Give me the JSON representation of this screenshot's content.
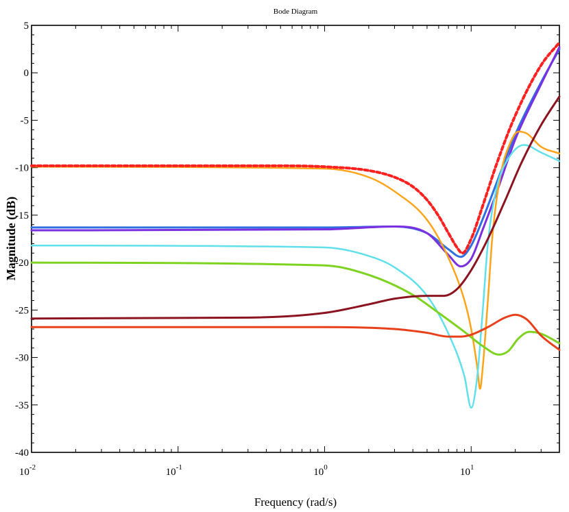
{
  "chart_data": {
    "type": "line",
    "title": "Bode Diagram",
    "xlabel": "Frequency (rad/s)",
    "ylabel": "Magnitude (dB)",
    "xscale": "log",
    "xlim": [
      0.01,
      40
    ],
    "ylim": [
      -40,
      5
    ],
    "grid": false,
    "x_ticks": [
      {
        "value": 0.01,
        "base": "10",
        "exp": "-2"
      },
      {
        "value": 0.1,
        "base": "10",
        "exp": "-1"
      },
      {
        "value": 1,
        "base": "10",
        "exp": "0"
      },
      {
        "value": 10,
        "base": "10",
        "exp": "1"
      }
    ],
    "y_ticks": [
      "5",
      "0",
      "-5",
      "-10",
      "-15",
      "-20",
      "-25",
      "-30",
      "-35",
      "-40"
    ],
    "series": [
      {
        "color": "#2f6fe0",
        "width": 3,
        "dash": "",
        "points": [
          [
            0.01,
            -16.3
          ],
          [
            1,
            -16.3
          ],
          [
            3,
            -16.2
          ],
          [
            5,
            -16.9
          ],
          [
            7,
            -18.6
          ],
          [
            8.5,
            -19.4
          ],
          [
            10,
            -18.2
          ],
          [
            12,
            -15.4
          ],
          [
            15,
            -11.5
          ],
          [
            20,
            -6.5
          ],
          [
            30,
            -1
          ],
          [
            40,
            2.5
          ]
        ]
      },
      {
        "color": "#7a2fe0",
        "width": 3,
        "dash": "",
        "points": [
          [
            0.01,
            -16.6
          ],
          [
            1,
            -16.5
          ],
          [
            3,
            -16.2
          ],
          [
            5,
            -16.9
          ],
          [
            7,
            -19.2
          ],
          [
            8.5,
            -20.4
          ],
          [
            10,
            -19.6
          ],
          [
            12,
            -16.5
          ],
          [
            15,
            -12.5
          ],
          [
            20,
            -7
          ],
          [
            30,
            -1.2
          ],
          [
            40,
            2.7
          ]
        ]
      },
      {
        "color": "#ffa41a",
        "width": 2.5,
        "dash": "",
        "points": [
          [
            0.01,
            -9.9
          ],
          [
            1,
            -10.1
          ],
          [
            2,
            -11
          ],
          [
            3,
            -12.5
          ],
          [
            5,
            -15.5
          ],
          [
            7,
            -19.5
          ],
          [
            9,
            -24
          ],
          [
            10,
            -27
          ],
          [
            11,
            -31
          ],
          [
            11.5,
            -33.3
          ],
          [
            12,
            -31
          ],
          [
            13,
            -24
          ],
          [
            14,
            -17
          ],
          [
            16,
            -10.5
          ],
          [
            18,
            -7.8
          ],
          [
            21,
            -6.2
          ],
          [
            24,
            -6.4
          ],
          [
            30,
            -7.8
          ],
          [
            40,
            -8.5
          ]
        ]
      },
      {
        "color": "#5fe0ea",
        "width": 2.5,
        "dash": "",
        "points": [
          [
            0.01,
            -18.2
          ],
          [
            1,
            -18.4
          ],
          [
            2,
            -19.3
          ],
          [
            3,
            -20.5
          ],
          [
            5,
            -23.5
          ],
          [
            7,
            -27.5
          ],
          [
            9,
            -32
          ],
          [
            10,
            -35.3
          ],
          [
            11,
            -32
          ],
          [
            12,
            -25
          ],
          [
            13,
            -18
          ],
          [
            15,
            -12
          ],
          [
            18,
            -9
          ],
          [
            23,
            -7.6
          ],
          [
            30,
            -8.4
          ],
          [
            40,
            -9.3
          ]
        ]
      },
      {
        "color": "#7ed321",
        "width": 3,
        "dash": "",
        "points": [
          [
            0.01,
            -20
          ],
          [
            1,
            -20.3
          ],
          [
            2,
            -21.3
          ],
          [
            4,
            -23.4
          ],
          [
            6,
            -25.3
          ],
          [
            9,
            -27.3
          ],
          [
            12,
            -28.8
          ],
          [
            15.5,
            -29.7
          ],
          [
            18,
            -29.3
          ],
          [
            21,
            -28
          ],
          [
            25,
            -27.3
          ],
          [
            30,
            -27.5
          ],
          [
            40,
            -28.5
          ]
        ]
      },
      {
        "color": "#8b1420",
        "width": 3,
        "dash": "",
        "points": [
          [
            0.01,
            -25.9
          ],
          [
            0.3,
            -25.8
          ],
          [
            1,
            -25.3
          ],
          [
            2,
            -24.4
          ],
          [
            3,
            -23.8
          ],
          [
            5,
            -23.5
          ],
          [
            6.5,
            -23.5
          ],
          [
            8,
            -22.8
          ],
          [
            10,
            -20.8
          ],
          [
            13,
            -17.5
          ],
          [
            17,
            -13.5
          ],
          [
            22,
            -9.5
          ],
          [
            30,
            -5.5
          ],
          [
            40,
            -2.5
          ]
        ]
      },
      {
        "color": "#e8401a",
        "width": 3,
        "dash": "",
        "points": [
          [
            0.01,
            -26.8
          ],
          [
            1,
            -26.8
          ],
          [
            3,
            -27
          ],
          [
            5,
            -27.4
          ],
          [
            7,
            -27.8
          ],
          [
            8.5,
            -27.8
          ],
          [
            10,
            -27.6
          ],
          [
            13,
            -26.8
          ],
          [
            17,
            -25.8
          ],
          [
            20,
            -25.5
          ],
          [
            24,
            -26
          ],
          [
            30,
            -27.7
          ],
          [
            40,
            -29.2
          ]
        ]
      },
      {
        "color": "#ff2020",
        "width": 4,
        "dash": "5 4",
        "points": [
          [
            0.01,
            -9.8
          ],
          [
            0.5,
            -9.8
          ],
          [
            1,
            -9.9
          ],
          [
            2,
            -10.3
          ],
          [
            3,
            -11
          ],
          [
            4,
            -12
          ],
          [
            5,
            -13.4
          ],
          [
            6,
            -15.1
          ],
          [
            7,
            -16.9
          ],
          [
            8,
            -18.4
          ],
          [
            8.7,
            -19
          ],
          [
            10,
            -17.5
          ],
          [
            12,
            -14
          ],
          [
            15,
            -9.5
          ],
          [
            20,
            -4.5
          ],
          [
            30,
            0.8
          ],
          [
            40,
            3.2
          ]
        ]
      }
    ]
  }
}
